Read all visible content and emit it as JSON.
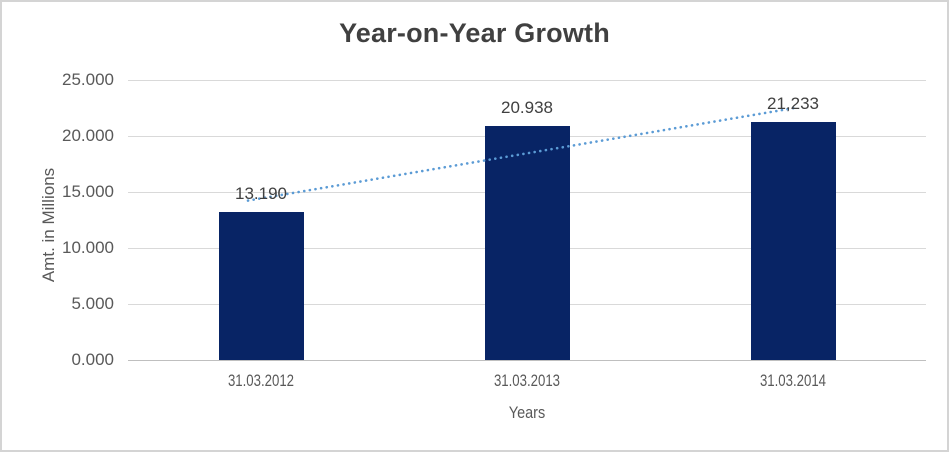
{
  "chart_data": {
    "type": "bar",
    "title": "Year-on-Year Growth",
    "categories": [
      "31.03.2012",
      "31.03.2013",
      "31.03.2014"
    ],
    "values": [
      13.19,
      20.938,
      21.233
    ],
    "value_labels": [
      "13.190",
      "20.938",
      "21,233"
    ],
    "xlabel": "Years",
    "ylabel": "Amt. in Millions",
    "ylim": [
      0,
      25
    ],
    "ytick_interval": 5,
    "ytick_labels": [
      "0.000",
      "5.000",
      "10.000",
      "15.000",
      "20.000",
      "25.000"
    ],
    "grid": true,
    "legend": "none",
    "trendline": {
      "type": "linear",
      "style": "dotted"
    },
    "colors": {
      "bar": "#082465",
      "trendline": "#5b9bd5",
      "gridline": "#d9d9d9",
      "axis_line": "#bfbfbf",
      "title_text": "#404040",
      "tick_text": "#595959",
      "data_label_text": "#404040",
      "chart_border": "#d4d4d4",
      "background": "#ffffff"
    }
  }
}
